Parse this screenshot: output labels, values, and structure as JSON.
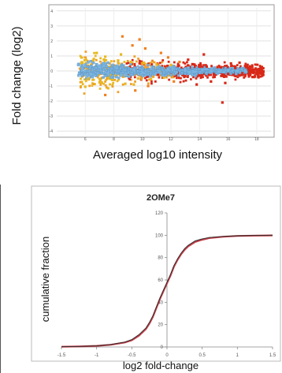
{
  "charts": [
    {
      "id": "ma",
      "type": "scatter",
      "title": "",
      "xlabel": "Averaged log10 intensity",
      "ylabel": "Fold change (log2)",
      "xlim": [
        4,
        19
      ],
      "ylim": [
        -4.2,
        4.2
      ],
      "x_ticks": [
        6,
        8,
        10,
        12,
        14,
        16,
        18
      ],
      "y_ticks": [
        -4,
        -3,
        -2,
        -1,
        0,
        1,
        2,
        3,
        4
      ],
      "grid": true,
      "legend": "none",
      "colors": {
        "low": "#e8b820",
        "mid": "#f0a028",
        "high": "#d82818",
        "core": "#7ab4e0"
      },
      "series": [
        {
          "color": "#e8b820",
          "x": [
            5.8,
            6.2,
            6.6,
            7.0,
            7.4,
            7.9,
            8.3,
            8.8,
            9.2,
            9.7,
            6.0,
            6.8,
            7.6,
            8.5,
            9.4,
            10.1,
            10.6,
            11.0,
            11.5,
            12.0
          ],
          "y": [
            0.55,
            -0.5,
            0.8,
            -0.75,
            0.95,
            -0.6,
            0.7,
            -0.85,
            0.6,
            -0.5,
            -1.05,
            1.2,
            -1.15,
            1.1,
            -0.9,
            0.55,
            -0.55,
            0.45,
            -0.45,
            0.4
          ]
        },
        {
          "color": "#f08020",
          "x": [
            8.6,
            9.3,
            10.2,
            11.3,
            7.4,
            9.5,
            11.8,
            10.4,
            12.6,
            9.8,
            12.2
          ],
          "y": [
            2.3,
            1.7,
            1.5,
            1.2,
            -1.6,
            -1.3,
            0.9,
            -1.0,
            0.6,
            2.1,
            -0.7
          ]
        },
        {
          "color": "#d82818",
          "x": [
            12.5,
            13.0,
            13.5,
            14.0,
            14.5,
            15.0,
            15.5,
            16.0,
            16.5,
            17.0,
            17.5,
            18.0,
            18.3,
            13.2,
            14.8,
            16.2,
            17.7,
            15.6,
            14.3,
            16.8,
            15.8,
            13.8
          ],
          "y": [
            0.35,
            -0.35,
            0.45,
            -0.3,
            0.3,
            -0.25,
            0.25,
            -0.2,
            0.2,
            -0.15,
            0.15,
            0.05,
            -0.05,
            0.75,
            -0.7,
            0.5,
            -0.4,
            -2.1,
            1.1,
            0.55,
            -0.8,
            -0.9
          ]
        },
        {
          "color": "#7ab4e0",
          "x": [
            5.8,
            6.4,
            7.0,
            7.6,
            8.2,
            8.8,
            9.4,
            10.0,
            10.6,
            11.2,
            11.8,
            12.4,
            13.0,
            13.6,
            14.2,
            14.8,
            15.4,
            16.0,
            16.6,
            17.2,
            6.1,
            7.3,
            8.5,
            9.7,
            10.9,
            12.1,
            13.3,
            14.5,
            15.7
          ],
          "y": [
            0.15,
            -0.2,
            0.25,
            -0.15,
            0.2,
            -0.25,
            0.1,
            -0.1,
            0.15,
            -0.05,
            0.1,
            -0.1,
            0.05,
            -0.05,
            0.1,
            0.0,
            -0.05,
            0.05,
            0.0,
            -0.05,
            -0.35,
            0.35,
            -0.3,
            0.3,
            -0.2,
            0.2,
            -0.1,
            0.12,
            -0.08
          ]
        }
      ]
    },
    {
      "id": "cdf",
      "type": "line",
      "title": "2OMe7",
      "xlabel": "log2 fold-change",
      "ylabel": "cumulative fraction",
      "xlim": [
        -1.5,
        1.5
      ],
      "ylim": [
        0,
        120
      ],
      "x_ticks": [
        -1.5,
        -1,
        -0.5,
        0,
        0.5,
        1,
        1.5
      ],
      "y_ticks": [
        0,
        20,
        40,
        60,
        80,
        100,
        120
      ],
      "grid": false,
      "legend": "none",
      "series": [
        {
          "color": "#c0404a",
          "x": [
            -1.5,
            -1.25,
            -1.0,
            -0.8,
            -0.6,
            -0.5,
            -0.4,
            -0.3,
            -0.25,
            -0.2,
            -0.15,
            -0.1,
            -0.05,
            0.0,
            0.05,
            0.1,
            0.15,
            0.2,
            0.25,
            0.3,
            0.4,
            0.5,
            0.6,
            0.8,
            1.0,
            1.25,
            1.5
          ],
          "y": [
            0.2,
            0.5,
            1,
            2,
            4,
            6,
            10,
            16,
            21,
            27,
            35,
            43,
            50,
            57,
            64,
            72,
            78,
            83,
            87,
            90,
            94,
            96,
            97.5,
            98.7,
            99.4,
            99.7,
            99.9
          ]
        },
        {
          "color": "#2a2a2a",
          "x": [
            -1.5,
            -1.25,
            -1.0,
            -0.8,
            -0.6,
            -0.5,
            -0.4,
            -0.3,
            -0.25,
            -0.2,
            -0.15,
            -0.1,
            -0.05,
            0.0,
            0.05,
            0.1,
            0.15,
            0.2,
            0.25,
            0.3,
            0.4,
            0.5,
            0.6,
            0.8,
            1.0,
            1.25,
            1.5
          ],
          "y": [
            0.2,
            0.5,
            1,
            2.2,
            4.4,
            6.6,
            11,
            17,
            22,
            28,
            36,
            44,
            51,
            58,
            65,
            73,
            79,
            84,
            88,
            91,
            95,
            96.8,
            98,
            99,
            99.5,
            99.8,
            100
          ]
        }
      ]
    }
  ]
}
